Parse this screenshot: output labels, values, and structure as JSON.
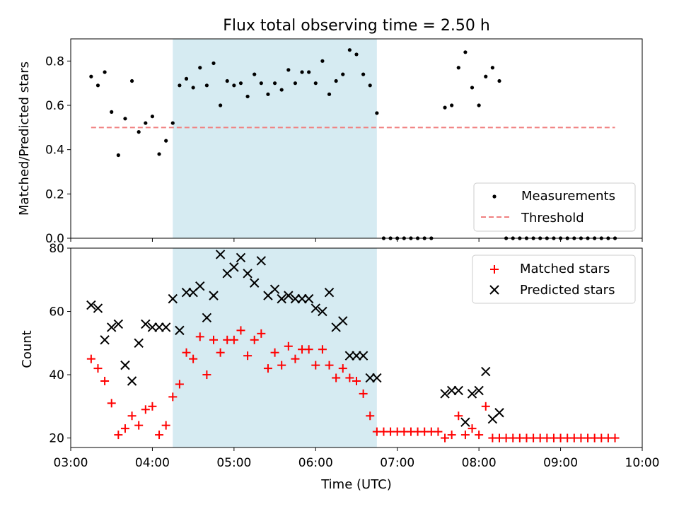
{
  "chart_data": [
    {
      "type": "scatter",
      "title": "Flux total observing time = 2.50 h",
      "xlabel": "",
      "ylabel": "Matched/Predicted stars",
      "ylim": [
        0,
        0.9
      ],
      "yticks": [
        0.0,
        0.2,
        0.4,
        0.6,
        0.8
      ],
      "ytick_labels": [
        "0.0",
        "0.2",
        "0.4",
        "0.6",
        "0.8"
      ],
      "shaded_region": {
        "x_start": "04:15",
        "x_end": "06:45",
        "color": "#add8e6"
      },
      "legend": {
        "position": "lower-right",
        "entries": [
          "Measurements",
          "Threshold"
        ]
      },
      "series": [
        {
          "name": "Measurements",
          "marker": "dot",
          "color": "#000000",
          "x": [
            "03:15",
            "03:20",
            "03:25",
            "03:30",
            "03:35",
            "03:40",
            "03:45",
            "03:50",
            "03:55",
            "04:00",
            "04:05",
            "04:10",
            "04:15",
            "04:20",
            "04:25",
            "04:30",
            "04:35",
            "04:40",
            "04:45",
            "04:50",
            "04:55",
            "05:00",
            "05:05",
            "05:10",
            "05:15",
            "05:20",
            "05:25",
            "05:30",
            "05:35",
            "05:40",
            "05:45",
            "05:50",
            "05:55",
            "06:00",
            "06:05",
            "06:10",
            "06:15",
            "06:20",
            "06:25",
            "06:30",
            "06:35",
            "06:40",
            "06:45",
            "06:50",
            "06:55",
            "07:00",
            "07:05",
            "07:10",
            "07:15",
            "07:20",
            "07:25",
            "07:35",
            "07:40",
            "07:45",
            "07:50",
            "07:55",
            "08:00",
            "08:05",
            "08:10",
            "08:15",
            "08:20",
            "08:25",
            "08:30",
            "08:35",
            "08:40",
            "08:45",
            "08:50",
            "08:55",
            "09:00",
            "09:05",
            "09:10",
            "09:15",
            "09:20",
            "09:25",
            "09:30",
            "09:35",
            "09:40"
          ],
          "y": [
            0.73,
            0.69,
            0.75,
            0.57,
            0.375,
            0.54,
            0.71,
            0.48,
            0.52,
            0.55,
            0.38,
            0.44,
            0.52,
            0.69,
            0.72,
            0.68,
            0.77,
            0.69,
            0.79,
            0.6,
            0.71,
            0.69,
            0.7,
            0.64,
            0.74,
            0.7,
            0.65,
            0.7,
            0.67,
            0.76,
            0.7,
            0.75,
            0.75,
            0.7,
            0.8,
            0.65,
            0.71,
            0.74,
            0.85,
            0.83,
            0.74,
            0.69,
            0.565,
            0.0,
            0.0,
            0.0,
            0.0,
            0.0,
            0.0,
            0.0,
            0.0,
            0.59,
            0.6,
            0.77,
            0.84,
            0.68,
            0.6,
            0.73,
            0.77,
            0.71,
            0.0,
            0.0,
            0.0,
            0.0,
            0.0,
            0.0,
            0.0,
            0.0,
            0.0,
            0.0,
            0.0,
            0.0,
            0.0,
            0.0,
            0.0,
            0.0,
            0.0
          ]
        },
        {
          "name": "Threshold",
          "marker": "dashed-line",
          "color": "#f08080",
          "x": [
            "03:15",
            "09:40"
          ],
          "y": [
            0.5,
            0.5
          ]
        }
      ]
    },
    {
      "type": "scatter",
      "title": "",
      "xlabel": "Time (UTC)",
      "ylabel": "Count",
      "ylim": [
        17,
        80
      ],
      "yticks": [
        20,
        40,
        60,
        80
      ],
      "ytick_labels": [
        "20",
        "40",
        "60",
        "80"
      ],
      "xlim": [
        "03:00",
        "10:00"
      ],
      "xticks": [
        "03:00",
        "04:00",
        "05:00",
        "06:00",
        "07:00",
        "08:00",
        "09:00",
        "10:00"
      ],
      "xtick_labels": [
        "03:00",
        "04:00",
        "05:00",
        "06:00",
        "07:00",
        "08:00",
        "09:00",
        "10:00"
      ],
      "shaded_region": {
        "x_start": "04:15",
        "x_end": "06:45",
        "color": "#add8e6"
      },
      "legend": {
        "position": "top-right",
        "entries": [
          "Matched stars",
          "Predicted stars"
        ]
      },
      "series": [
        {
          "name": "Matched stars",
          "marker": "plus",
          "color": "#ff0000",
          "x": [
            "03:15",
            "03:20",
            "03:25",
            "03:30",
            "03:35",
            "03:40",
            "03:45",
            "03:50",
            "03:55",
            "04:00",
            "04:05",
            "04:10",
            "04:15",
            "04:20",
            "04:25",
            "04:30",
            "04:35",
            "04:40",
            "04:45",
            "04:50",
            "04:55",
            "05:00",
            "05:05",
            "05:10",
            "05:15",
            "05:20",
            "05:25",
            "05:30",
            "05:35",
            "05:40",
            "05:45",
            "05:50",
            "05:55",
            "06:00",
            "06:05",
            "06:10",
            "06:15",
            "06:20",
            "06:25",
            "06:30",
            "06:35",
            "06:40",
            "06:45",
            "06:50",
            "06:55",
            "07:00",
            "07:05",
            "07:10",
            "07:15",
            "07:20",
            "07:25",
            "07:30",
            "07:35",
            "07:40",
            "07:45",
            "07:50",
            "07:55",
            "08:00",
            "08:05",
            "08:10",
            "08:15",
            "08:20",
            "08:25",
            "08:30",
            "08:35",
            "08:40",
            "08:45",
            "08:50",
            "08:55",
            "09:00",
            "09:05",
            "09:10",
            "09:15",
            "09:20",
            "09:25",
            "09:30",
            "09:35",
            "09:40"
          ],
          "y": [
            45,
            42,
            38,
            31,
            21,
            23,
            27,
            24,
            29,
            30,
            21,
            24,
            33,
            37,
            47,
            45,
            52,
            40,
            51,
            47,
            51,
            51,
            54,
            46,
            51,
            53,
            42,
            47,
            43,
            49,
            45,
            48,
            48,
            43,
            48,
            43,
            39,
            42,
            39,
            38,
            34,
            27,
            22,
            22,
            22,
            22,
            22,
            22,
            22,
            22,
            22,
            22,
            20,
            21,
            27,
            21,
            23,
            21,
            30,
            20,
            20,
            20,
            20,
            20,
            20,
            20,
            20,
            20,
            20,
            20,
            20,
            20,
            20,
            20,
            20,
            20,
            20,
            20
          ]
        },
        {
          "name": "Predicted stars",
          "marker": "x",
          "color": "#000000",
          "x": [
            "03:15",
            "03:20",
            "03:25",
            "03:30",
            "03:35",
            "03:40",
            "03:45",
            "03:50",
            "03:55",
            "04:00",
            "04:05",
            "04:10",
            "04:15",
            "04:20",
            "04:25",
            "04:30",
            "04:35",
            "04:40",
            "04:45",
            "04:50",
            "04:55",
            "05:00",
            "05:05",
            "05:10",
            "05:15",
            "05:20",
            "05:25",
            "05:30",
            "05:35",
            "05:40",
            "05:45",
            "05:50",
            "05:55",
            "06:00",
            "06:05",
            "06:10",
            "06:15",
            "06:20",
            "06:25",
            "06:30",
            "06:35",
            "06:40",
            "06:45",
            "07:35",
            "07:40",
            "07:45",
            "07:50",
            "07:55",
            "08:00",
            "08:05",
            "08:10",
            "08:15"
          ],
          "y": [
            62,
            61,
            51,
            55,
            56,
            43,
            38,
            50,
            56,
            55,
            55,
            55,
            64,
            54,
            66,
            66,
            68,
            58,
            65,
            78,
            72,
            74,
            77,
            72,
            69,
            76,
            65,
            67,
            64,
            65,
            64,
            64,
            64,
            61,
            60,
            66,
            55,
            57,
            46,
            46,
            46,
            39,
            39,
            34,
            35,
            35,
            25,
            34,
            35,
            41,
            26,
            28
          ]
        }
      ]
    }
  ]
}
